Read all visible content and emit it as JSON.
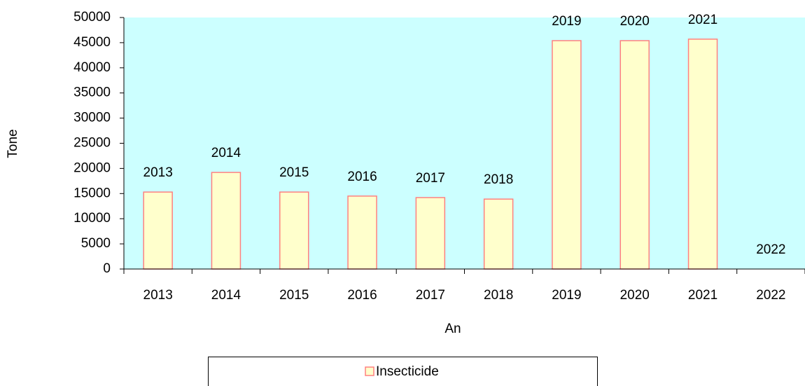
{
  "chart_data": {
    "type": "bar",
    "categories": [
      "2013",
      "2014",
      "2015",
      "2016",
      "2017",
      "2018",
      "2019",
      "2020",
      "2021",
      "2022"
    ],
    "series": [
      {
        "name": "Insecticide",
        "color": "#ffffcc",
        "values": [
          15300,
          19200,
          15300,
          14500,
          14200,
          13900,
          45400,
          45400,
          45700,
          0
        ]
      }
    ],
    "x_label": "An",
    "y_label": "Tone",
    "ylim": [
      0,
      50000
    ],
    "yticks": [
      0,
      5000,
      10000,
      15000,
      20000,
      25000,
      30000,
      35000,
      40000,
      45000,
      50000
    ],
    "grid": false,
    "legend": "bottom"
  }
}
